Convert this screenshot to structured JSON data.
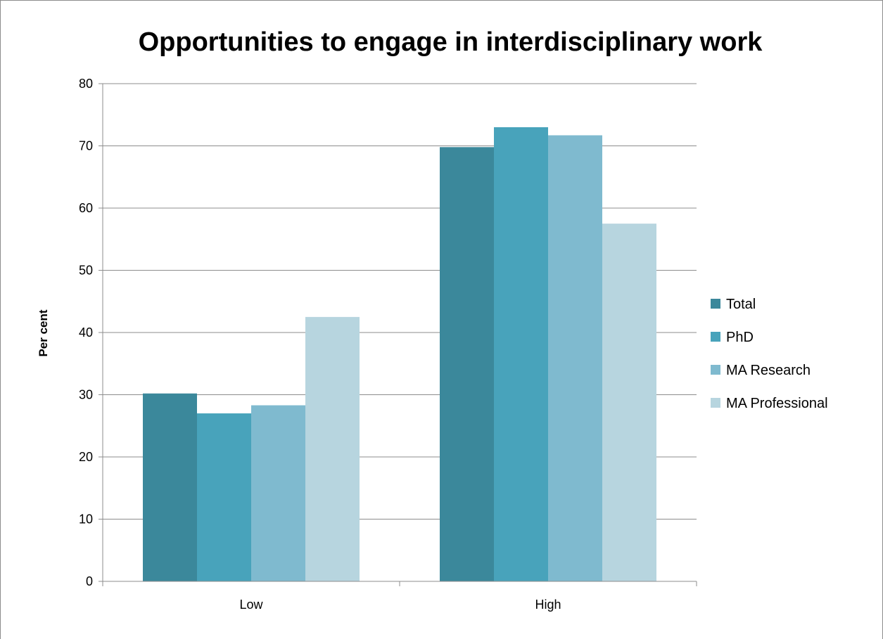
{
  "chart_data": {
    "type": "bar",
    "title": "Opportunities to engage in interdisciplinary work",
    "ylabel": "Per cent",
    "xlabel": "",
    "ylim": [
      0,
      80
    ],
    "yticks": [
      0,
      10,
      20,
      30,
      40,
      50,
      60,
      70,
      80
    ],
    "categories": [
      "Low",
      "High"
    ],
    "series": [
      {
        "name": "Total",
        "color": "#3b889b",
        "values": [
          30.2,
          69.8
        ]
      },
      {
        "name": "PhD",
        "color": "#48a3bb",
        "values": [
          27.0,
          73.0
        ]
      },
      {
        "name": "MA Research",
        "color": "#7fbacf",
        "values": [
          28.3,
          71.7
        ]
      },
      {
        "name": "MA Professional",
        "color": "#b7d5df",
        "values": [
          42.5,
          57.5
        ]
      }
    ],
    "grid": true,
    "legend_position": "right"
  }
}
